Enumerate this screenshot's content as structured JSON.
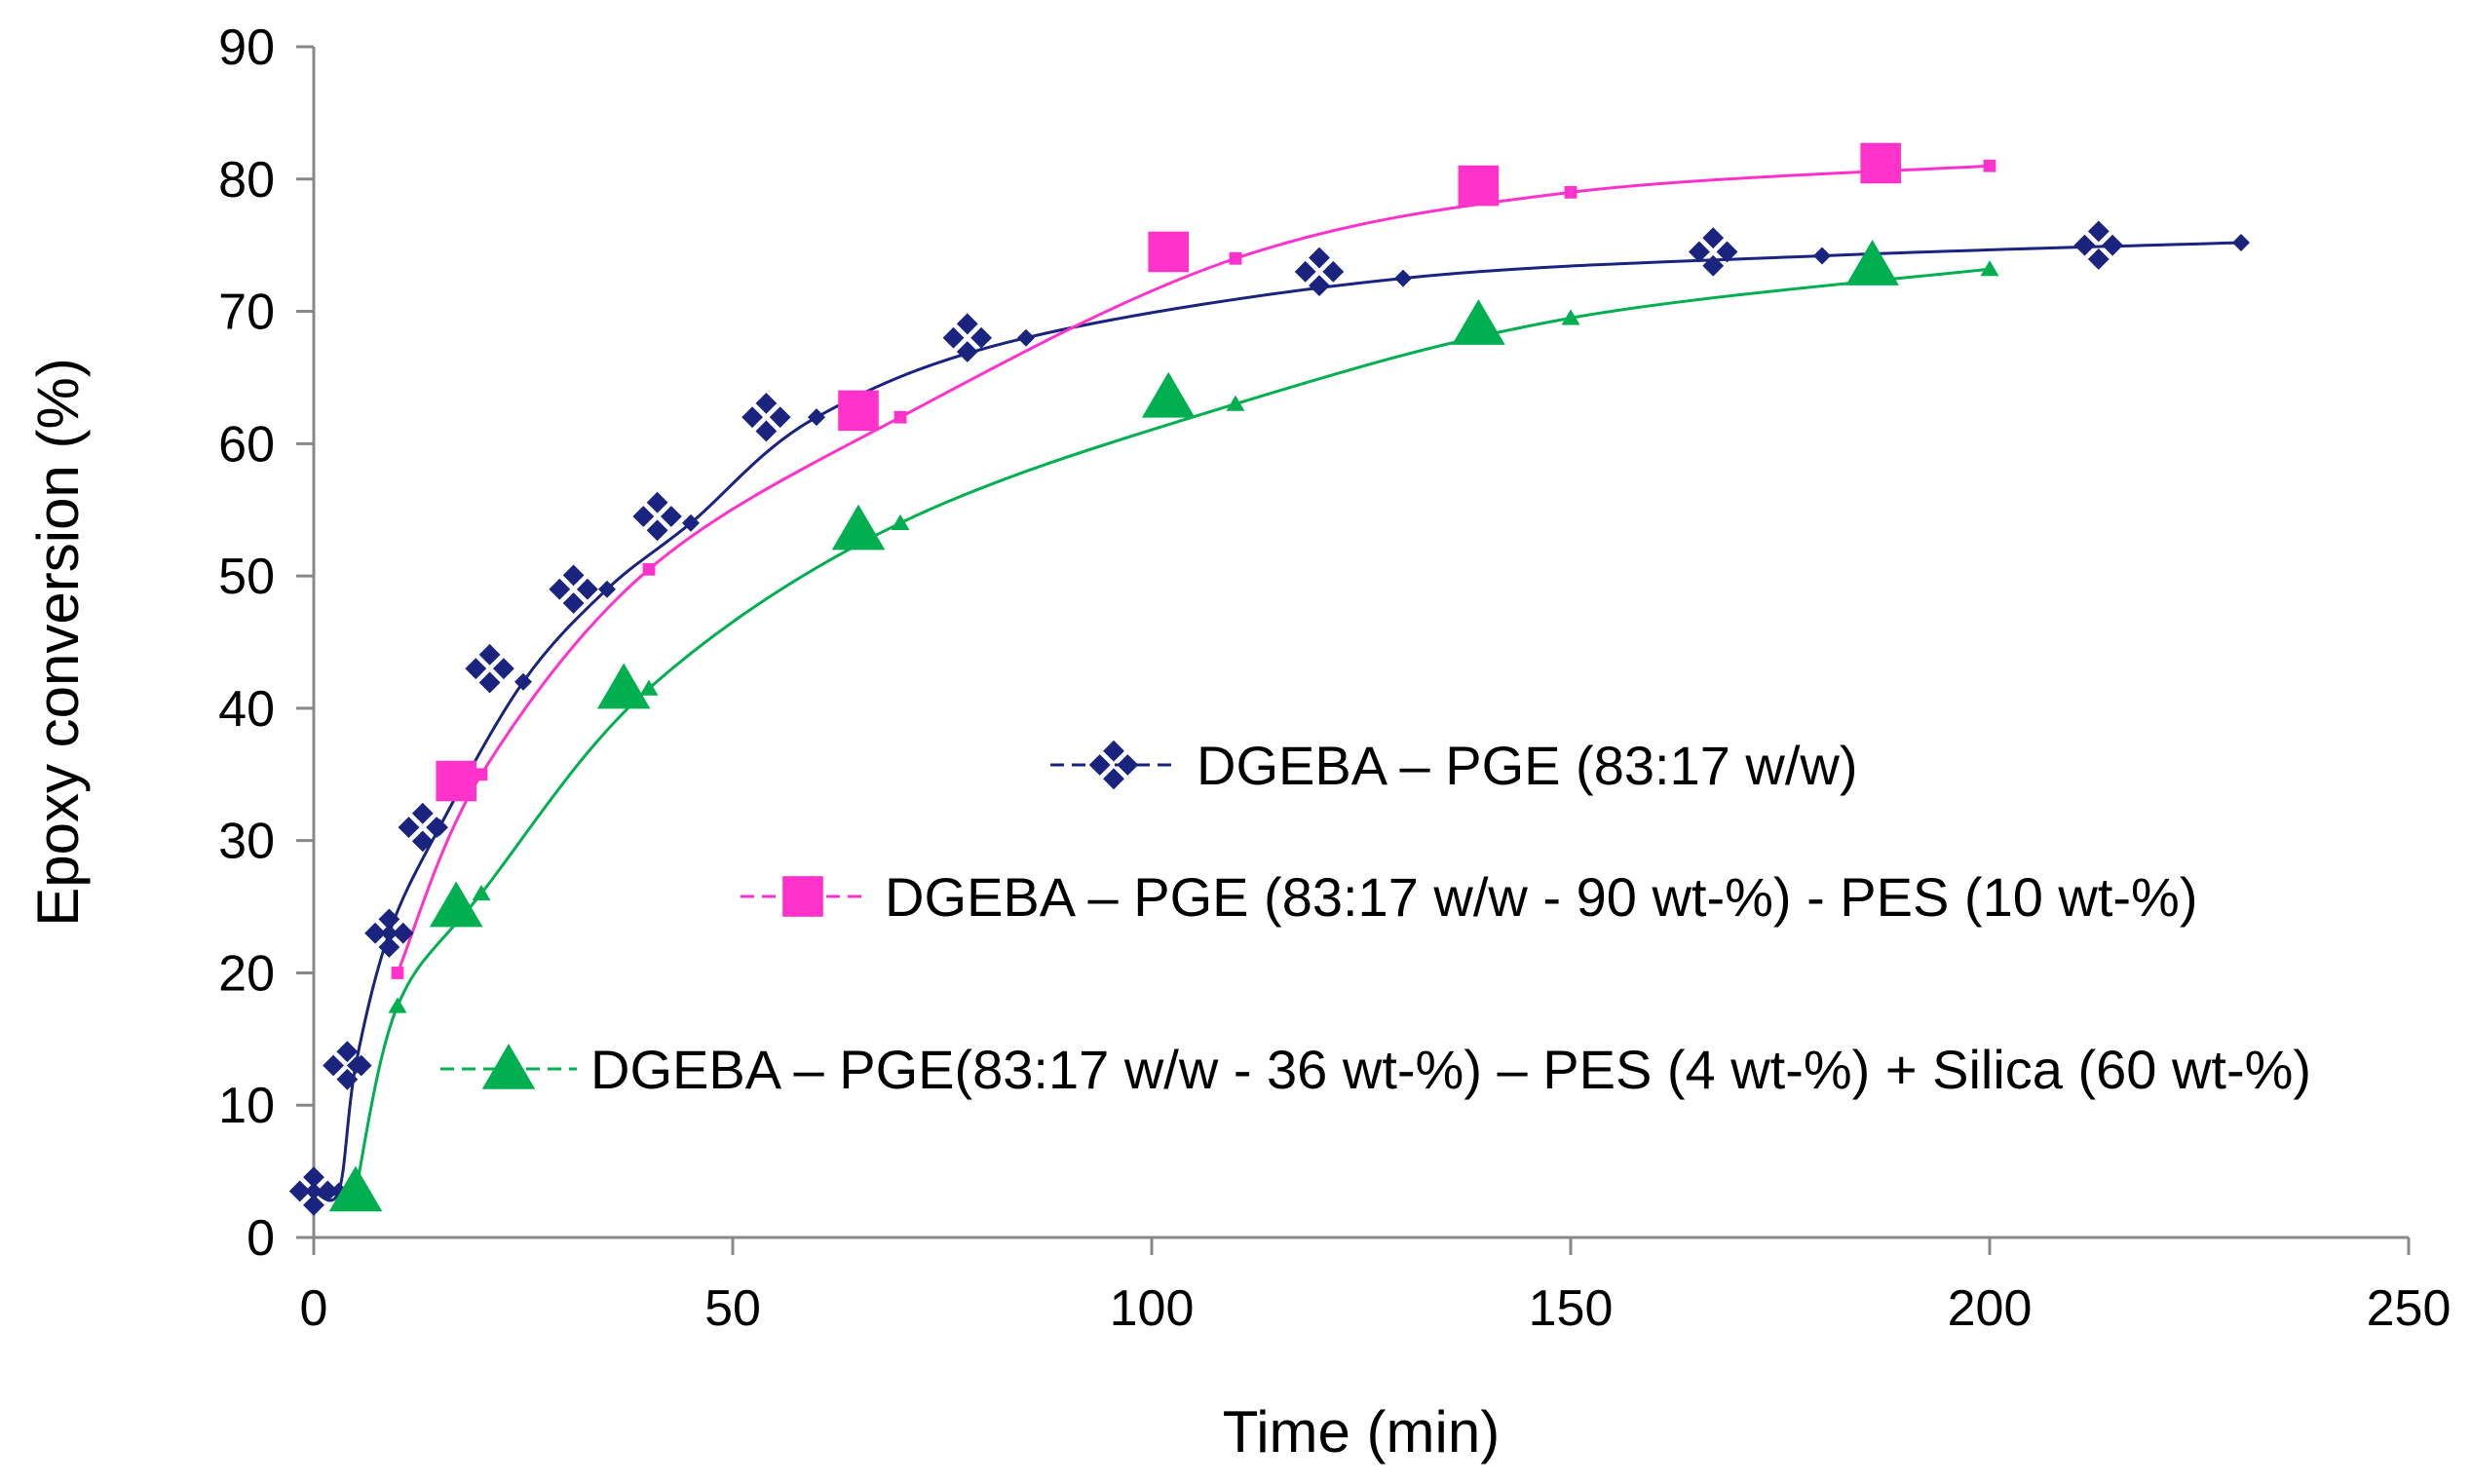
{
  "chart_data": {
    "type": "scatter",
    "title": "",
    "xlabel": "Time (min)",
    "ylabel": "Epoxy conversion (%)",
    "xlim": [
      0,
      250
    ],
    "ylim": [
      0,
      90
    ],
    "xticks": [
      0,
      50,
      100,
      150,
      200,
      250
    ],
    "yticks": [
      0,
      10,
      20,
      30,
      40,
      50,
      60,
      70,
      80,
      90
    ],
    "grid": false,
    "legend_position": "center-right",
    "series": [
      {
        "name": "DGEBA – PGE (83:17 w/w)",
        "color": "#1a237e",
        "marker": "cross-diamond-icon",
        "points": [
          [
            0,
            3.5
          ],
          [
            4,
            13
          ],
          [
            9,
            23
          ],
          [
            13,
            31
          ],
          [
            21,
            43
          ],
          [
            31,
            49
          ],
          [
            41,
            54.5
          ],
          [
            54,
            62
          ],
          [
            78,
            68
          ],
          [
            120,
            73
          ],
          [
            167,
            74.5
          ],
          [
            213,
            75
          ]
        ],
        "fit": [
          [
            0,
            3.5
          ],
          [
            3,
            3.5
          ],
          [
            5,
            13
          ],
          [
            9,
            23
          ],
          [
            15,
            31
          ],
          [
            25,
            42
          ],
          [
            35,
            49
          ],
          [
            45,
            54
          ],
          [
            60,
            62
          ],
          [
            85,
            68
          ],
          [
            130,
            72.5
          ],
          [
            180,
            74.2
          ],
          [
            230,
            75.2
          ]
        ]
      },
      {
        "name": "DGEBA – PGE (83:17 w/w - 90 wt-%) - PES (10 wt-%)",
        "color": "#ff33cc",
        "marker": "square-icon",
        "points": [
          [
            17,
            34.5
          ],
          [
            65,
            62.5
          ],
          [
            102,
            74.5
          ],
          [
            139,
            79.5
          ],
          [
            187,
            81.2
          ]
        ],
        "fit": [
          [
            10,
            20
          ],
          [
            20,
            35
          ],
          [
            40,
            50.5
          ],
          [
            70,
            62
          ],
          [
            110,
            74
          ],
          [
            150,
            79
          ],
          [
            200,
            81
          ]
        ]
      },
      {
        "name": "DGEBA – PGE(83:17 w/w - 36 wt-%) – PES (4 wt-%) + Silica (60 wt-%)",
        "color": "#00b050",
        "marker": "triangle-icon",
        "points": [
          [
            5,
            3.5
          ],
          [
            17,
            25
          ],
          [
            37,
            41.5
          ],
          [
            65,
            53.5
          ],
          [
            102,
            63.5
          ],
          [
            139,
            69
          ],
          [
            186,
            73.5
          ]
        ],
        "fit": [
          [
            5,
            3.5
          ],
          [
            10,
            17.5
          ],
          [
            20,
            26
          ],
          [
            40,
            41.5
          ],
          [
            70,
            54
          ],
          [
            110,
            63
          ],
          [
            150,
            69.5
          ],
          [
            200,
            73.2
          ]
        ]
      }
    ]
  }
}
